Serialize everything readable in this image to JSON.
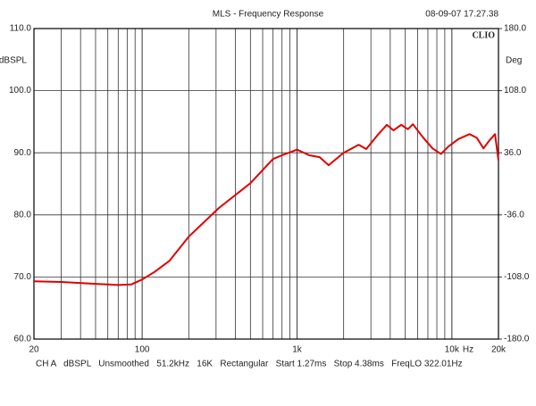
{
  "chart_data": {
    "type": "line",
    "title": "MLS - Frequency Response",
    "timestamp": "08-09-07 17.27.38",
    "logo": "CLIO",
    "y_label": "dBSPL",
    "y2_label": "Deg",
    "x_label": "Hz",
    "footer": "CH A   dBSPL   Unsmoothed   51.2kHz   16K   Rectangular   Start 1.27ms   Stop 4.38ms   FreqLO 322.01Hz",
    "x_log": true,
    "grid": true,
    "xlim": [
      20,
      20000
    ],
    "xticks": [
      20,
      100,
      {
        "value": 1000,
        "label": "1k"
      },
      {
        "value": 10000,
        "label": "10k"
      },
      {
        "value": 20000,
        "label": "20k"
      }
    ],
    "ylim": [
      60,
      110
    ],
    "yticks": [
      {
        "value": 60,
        "label": "60.0"
      },
      {
        "value": 70,
        "label": "70.0"
      },
      {
        "value": 80,
        "label": "80.0"
      },
      {
        "value": 90,
        "label": "90.0"
      },
      {
        "value": 100,
        "label": "100.0"
      },
      {
        "value": 110,
        "label": "110.0"
      }
    ],
    "y2lim": [
      -180,
      180
    ],
    "y2ticks": [
      {
        "value": -180,
        "label": "-180.0"
      },
      {
        "value": -108,
        "label": "-108.0"
      },
      {
        "value": -36,
        "label": "-36.0"
      },
      {
        "value": 36,
        "label": "36.0"
      },
      {
        "value": 108,
        "label": "108.0"
      },
      {
        "value": 180,
        "label": "180.0"
      }
    ],
    "x": [
      20,
      30,
      50,
      70,
      85,
      100,
      120,
      150,
      200,
      313,
      500,
      700,
      800,
      1000,
      1200,
      1400,
      1600,
      2000,
      2500,
      2800,
      3300,
      3800,
      4200,
      4700,
      5200,
      5600,
      6500,
      7500,
      8500,
      9500,
      11000,
      13000,
      14500,
      16000,
      17500,
      19000,
      20000
    ],
    "series": [
      {
        "name": "CH A",
        "color": "#e00000",
        "values": [
          69.3,
          69.2,
          68.9,
          68.7,
          68.8,
          69.6,
          70.8,
          72.6,
          76.5,
          81.1,
          85.1,
          89.0,
          89.6,
          90.5,
          89.6,
          89.3,
          88.0,
          90.0,
          91.3,
          90.6,
          92.8,
          94.5,
          93.6,
          94.5,
          93.8,
          94.6,
          92.5,
          90.7,
          89.8,
          91.0,
          92.2,
          93.0,
          92.4,
          90.7,
          92.0,
          93.0,
          88.8
        ]
      }
    ]
  }
}
